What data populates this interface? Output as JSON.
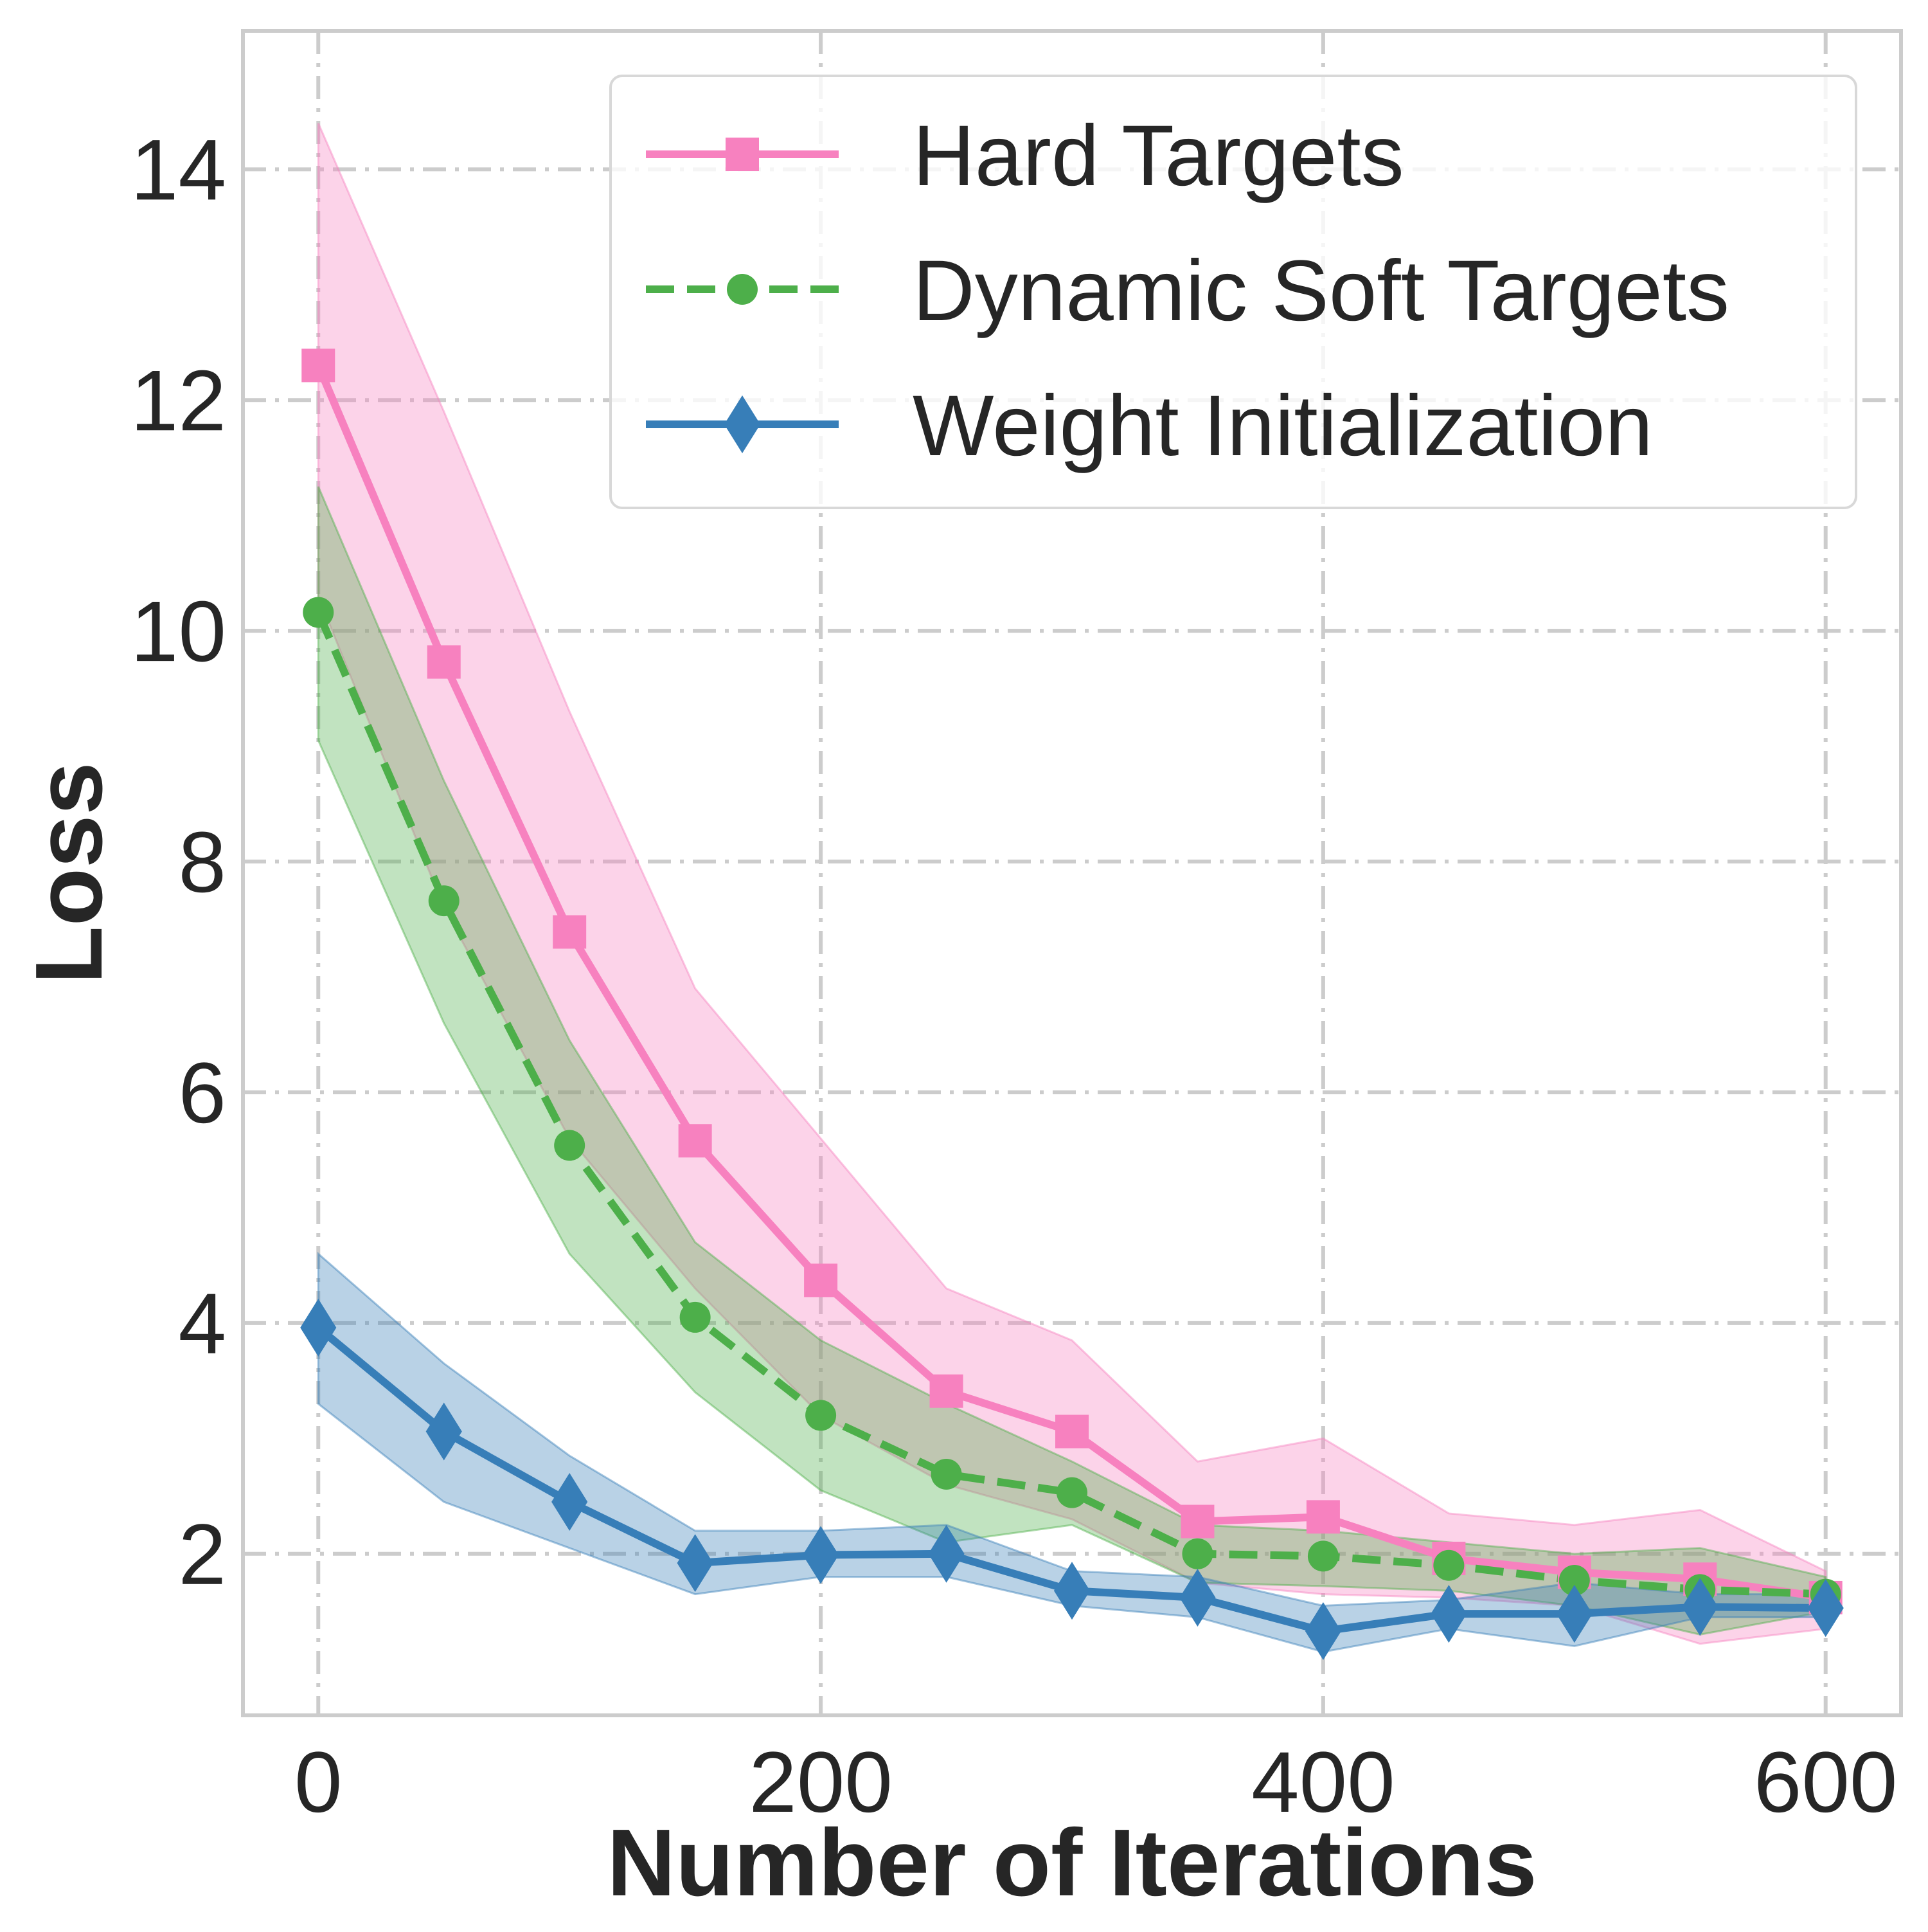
{
  "chart_data": {
    "type": "line",
    "xlabel": "Number of Iterations",
    "ylabel": "Loss",
    "xlim": [
      -30,
      630
    ],
    "ylim": [
      0.6,
      15.2
    ],
    "x_ticks": [
      0,
      200,
      400,
      600
    ],
    "y_ticks": [
      2,
      4,
      6,
      8,
      10,
      12,
      14
    ],
    "grid": true,
    "legend_position": "top-right",
    "x": [
      0,
      50,
      100,
      150,
      200,
      250,
      300,
      350,
      400,
      450,
      500,
      550,
      600
    ],
    "series": [
      {
        "name": "Hard Targets",
        "color": "#f781bf",
        "marker": "square",
        "linestyle": "solid",
        "values": [
          12.3,
          9.73,
          7.39,
          5.58,
          4.37,
          3.41,
          3.06,
          2.28,
          2.32,
          1.96,
          1.84,
          1.78,
          1.62
        ],
        "lower": [
          10.3,
          7.6,
          5.6,
          4.3,
          3.2,
          2.6,
          2.3,
          1.75,
          1.65,
          1.62,
          1.55,
          1.22,
          1.35
        ],
        "upper": [
          14.4,
          11.9,
          9.3,
          6.9,
          5.6,
          4.3,
          3.85,
          2.8,
          3.0,
          2.35,
          2.25,
          2.38,
          1.85
        ]
      },
      {
        "name": "Dynamic Soft Targets",
        "color": "#4daf4a",
        "marker": "circle",
        "linestyle": "dashed",
        "values": [
          10.16,
          7.66,
          5.54,
          4.05,
          3.2,
          2.69,
          2.53,
          2.0,
          1.98,
          1.9,
          1.77,
          1.69,
          1.65
        ],
        "lower": [
          9.05,
          6.6,
          4.6,
          3.4,
          2.55,
          2.1,
          2.25,
          1.75,
          1.72,
          1.68,
          1.55,
          1.3,
          1.5
        ],
        "upper": [
          11.25,
          8.7,
          6.45,
          4.7,
          3.85,
          3.3,
          2.8,
          2.25,
          2.2,
          2.1,
          2.0,
          2.05,
          1.8
        ]
      },
      {
        "name": "Weight Initialization",
        "color": "#377eb8",
        "marker": "thin_diamond",
        "linestyle": "solid",
        "values": [
          3.96,
          3.06,
          2.45,
          1.92,
          1.99,
          2.0,
          1.68,
          1.62,
          1.33,
          1.48,
          1.48,
          1.54,
          1.53
        ],
        "lower": [
          3.3,
          2.45,
          2.05,
          1.65,
          1.8,
          1.8,
          1.55,
          1.45,
          1.15,
          1.35,
          1.2,
          1.45,
          1.45
        ],
        "upper": [
          4.6,
          3.65,
          2.85,
          2.2,
          2.2,
          2.25,
          1.85,
          1.8,
          1.55,
          1.6,
          1.75,
          1.65,
          1.65
        ]
      }
    ]
  }
}
